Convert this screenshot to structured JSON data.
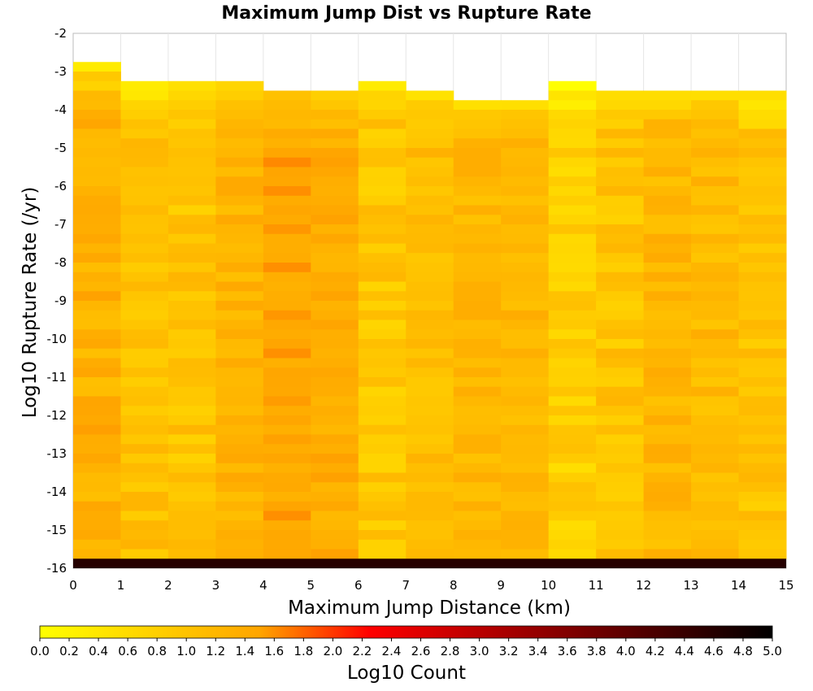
{
  "chart_data": {
    "type": "heatmap",
    "title": "Maximum Jump Dist vs Rupture Rate",
    "xlabel": "Maximum Jump Distance (km)",
    "ylabel": "Log10 Rupture Rate (/yr)",
    "xlim": [
      0,
      15
    ],
    "ylim": [
      -16,
      -2
    ],
    "x_ticks": [
      "0",
      "1",
      "2",
      "3",
      "4",
      "5",
      "6",
      "7",
      "8",
      "9",
      "10",
      "11",
      "12",
      "13",
      "14",
      "15"
    ],
    "y_ticks": [
      "-2",
      "-3",
      "-4",
      "-5",
      "-6",
      "-7",
      "-8",
      "-9",
      "-10",
      "-11",
      "-12",
      "-13",
      "-14",
      "-15",
      "-16"
    ],
    "x_bin_width": 1,
    "y_bin_width": 0.25,
    "colorbar": {
      "label": "Log10 Count",
      "min": 0.0,
      "max": 5.0,
      "ticks": [
        "0.0",
        "0.2",
        "0.4",
        "0.6",
        "0.8",
        "1.0",
        "1.2",
        "1.4",
        "1.6",
        "1.8",
        "2.0",
        "2.2",
        "2.4",
        "2.6",
        "2.8",
        "3.0",
        "3.2",
        "3.4",
        "3.6",
        "3.8",
        "4.0",
        "4.2",
        "4.4",
        "4.6",
        "4.8",
        "5.0"
      ],
      "colors": [
        "#ffff00",
        "#ffa500",
        "#ff0000",
        "#000000"
      ]
    },
    "columns": [
      {
        "x_range": [
          0,
          1
        ],
        "y_top": -2.75,
        "base": 1.3,
        "var": 0.25,
        "top_fade": 0.9
      },
      {
        "x_range": [
          1,
          2
        ],
        "y_top": -3.25,
        "base": 1.05,
        "var": 0.22,
        "top_fade": 0.8
      },
      {
        "x_range": [
          2,
          3
        ],
        "y_top": -3.25,
        "base": 1.0,
        "var": 0.25,
        "top_fade": 0.8
      },
      {
        "x_range": [
          3,
          4
        ],
        "y_top": -3.25,
        "base": 1.25,
        "var": 0.2,
        "top_fade": 0.8
      },
      {
        "x_range": [
          4,
          5
        ],
        "y_top": -3.5,
        "base": 1.45,
        "var": 0.18,
        "top_fade": 0.7
      },
      {
        "x_range": [
          5,
          6
        ],
        "y_top": -3.5,
        "base": 1.35,
        "var": 0.18,
        "top_fade": 0.7
      },
      {
        "x_range": [
          6,
          7
        ],
        "y_top": -3.25,
        "base": 0.95,
        "var": 0.25,
        "top_fade": 0.8
      },
      {
        "x_range": [
          7,
          8
        ],
        "y_top": -3.5,
        "base": 1.1,
        "var": 0.22,
        "top_fade": 0.7
      },
      {
        "x_range": [
          8,
          9
        ],
        "y_top": -3.75,
        "base": 1.2,
        "var": 0.2,
        "top_fade": 0.7
      },
      {
        "x_range": [
          9,
          10
        ],
        "y_top": -3.75,
        "base": 1.2,
        "var": 0.2,
        "top_fade": 0.7
      },
      {
        "x_range": [
          10,
          11
        ],
        "y_top": -3.25,
        "base": 0.8,
        "var": 0.25,
        "top_fade": 0.8
      },
      {
        "x_range": [
          11,
          12
        ],
        "y_top": -3.5,
        "base": 1.0,
        "var": 0.25,
        "top_fade": 0.7
      },
      {
        "x_range": [
          12,
          13
        ],
        "y_top": -3.5,
        "base": 1.2,
        "var": 0.22,
        "top_fade": 0.7
      },
      {
        "x_range": [
          13,
          14
        ],
        "y_top": -3.5,
        "base": 1.15,
        "var": 0.22,
        "top_fade": 0.7
      },
      {
        "x_range": [
          14,
          15
        ],
        "y_top": -3.5,
        "base": 1.0,
        "var": 0.22,
        "top_fade": 0.7
      }
    ],
    "bottom_row": {
      "y_range": [
        -16,
        -15.75
      ],
      "value": 4.6
    },
    "notes": []
  }
}
